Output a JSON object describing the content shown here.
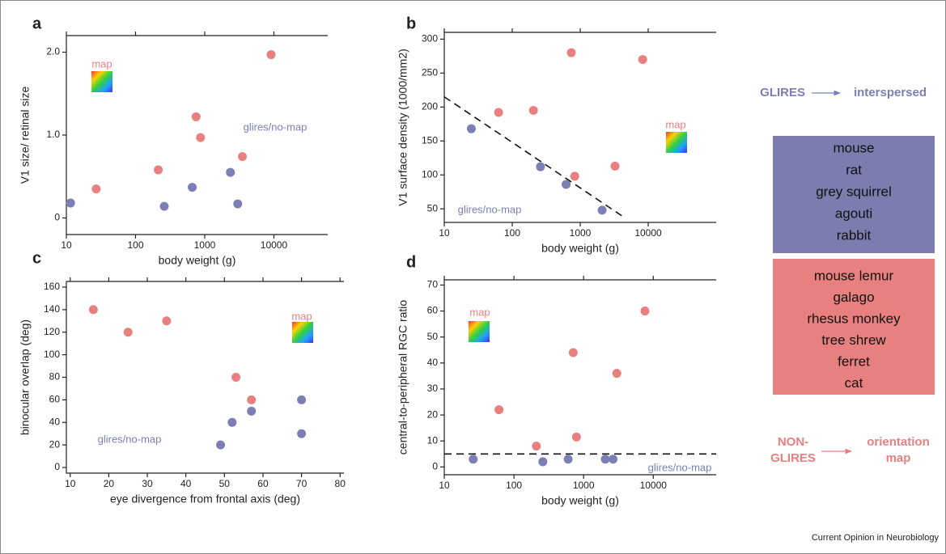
{
  "chart_data": [
    {
      "type": "scatter",
      "label": "a",
      "xlabel": "body weight (g)",
      "ylabel": "V1 size/ retinal size",
      "xscale": "log",
      "xlim": [
        10,
        60000
      ],
      "xticks": [
        10,
        100,
        1000,
        10000
      ],
      "ylim": [
        -0.2,
        2.2
      ],
      "yticks": [
        0,
        {
          "value": 1,
          "label": "1.0"
        },
        {
          "value": 2,
          "label": "2.0"
        }
      ],
      "series": [
        {
          "name": "map",
          "color": "#e88080",
          "x": [
            27,
            213,
            750,
            870,
            3500,
            9100
          ],
          "values": [
            0.35,
            0.58,
            1.22,
            0.97,
            0.74,
            1.97
          ]
        },
        {
          "name": "glires/no-map",
          "color": "#7b7fb5",
          "x": [
            11.5,
            260,
            660,
            2350,
            3000
          ],
          "values": [
            0.18,
            0.14,
            0.37,
            0.55,
            0.17
          ]
        }
      ]
    },
    {
      "type": "scatter",
      "label": "b",
      "xlabel": "body weight (g)",
      "ylabel": "V1 surface density (1000/mm2)",
      "xscale": "log",
      "xlim": [
        10,
        100000
      ],
      "xticks": [
        10,
        100,
        1000,
        10000
      ],
      "ylim": [
        30,
        310
      ],
      "yticks": [
        50,
        100,
        150,
        200,
        250,
        300
      ],
      "series": [
        {
          "name": "map",
          "color": "#e88080",
          "x": [
            63,
            205,
            740,
            830,
            3250,
            8300
          ],
          "values": [
            192,
            195,
            280,
            98,
            113,
            270
          ]
        },
        {
          "name": "glires/no-map",
          "color": "#7b7fb5",
          "x": [
            25,
            260,
            620,
            2100
          ],
          "values": [
            168,
            112,
            86,
            48
          ]
        }
      ],
      "reference_line": {
        "x": [
          10,
          4200
        ],
        "y": [
          215,
          39
        ]
      }
    },
    {
      "type": "scatter",
      "label": "c",
      "xlabel": "eye divergence from frontal axis (deg)",
      "ylabel": "binocular overlap (deg)",
      "xscale": "linear",
      "xlim": [
        9,
        81
      ],
      "xticks": [
        10,
        20,
        30,
        40,
        50,
        60,
        70,
        80
      ],
      "ylim": [
        -5,
        165
      ],
      "yticks": [
        0,
        20,
        40,
        60,
        80,
        100,
        120,
        140,
        160
      ],
      "series": [
        {
          "name": "map",
          "color": "#e88080",
          "x": [
            16,
            25,
            35,
            53,
            57
          ],
          "values": [
            140,
            120,
            130,
            80,
            60
          ]
        },
        {
          "name": "glires/no-map",
          "color": "#7b7fb5",
          "x": [
            49,
            52,
            57,
            70,
            70
          ],
          "values": [
            20,
            40,
            50,
            60,
            30
          ]
        }
      ]
    },
    {
      "type": "scatter",
      "label": "d",
      "xlabel": "body weight (g)",
      "ylabel": "central-to-peripheral RGC ratio",
      "xscale": "log",
      "xlim": [
        10,
        80000
      ],
      "xticks": [
        10,
        100,
        1000,
        10000
      ],
      "ylim": [
        -3,
        72
      ],
      "yticks": [
        0,
        10,
        20,
        30,
        40,
        50,
        60,
        70
      ],
      "series": [
        {
          "name": "map",
          "color": "#e88080",
          "x": [
            61,
            210,
            710,
            790,
            3000,
            7600
          ],
          "values": [
            22,
            8,
            44,
            11.5,
            36,
            60
          ]
        },
        {
          "name": "glires/no-map",
          "color": "#7b7fb5",
          "x": [
            26,
            260,
            600,
            2050,
            2650
          ],
          "values": [
            3,
            2,
            3,
            3,
            3
          ]
        }
      ],
      "reference_line": {
        "x": [
          10,
          80000
        ],
        "y": [
          5,
          5
        ]
      }
    }
  ],
  "legend": {
    "glires": "GLIRES",
    "interspersed": "interspersed",
    "glires_species": [
      "mouse",
      "rat",
      "grey squirrel",
      "agouti",
      "rabbit"
    ],
    "nonglires_species": [
      "mouse lemur",
      "galago",
      "rhesus monkey",
      "tree shrew",
      "ferret",
      "cat"
    ],
    "nonglires": [
      "NON-",
      "GLIRES"
    ],
    "orientation_map": [
      "orientation",
      "map"
    ]
  },
  "footer": "Current Opinion in Neurobiology"
}
